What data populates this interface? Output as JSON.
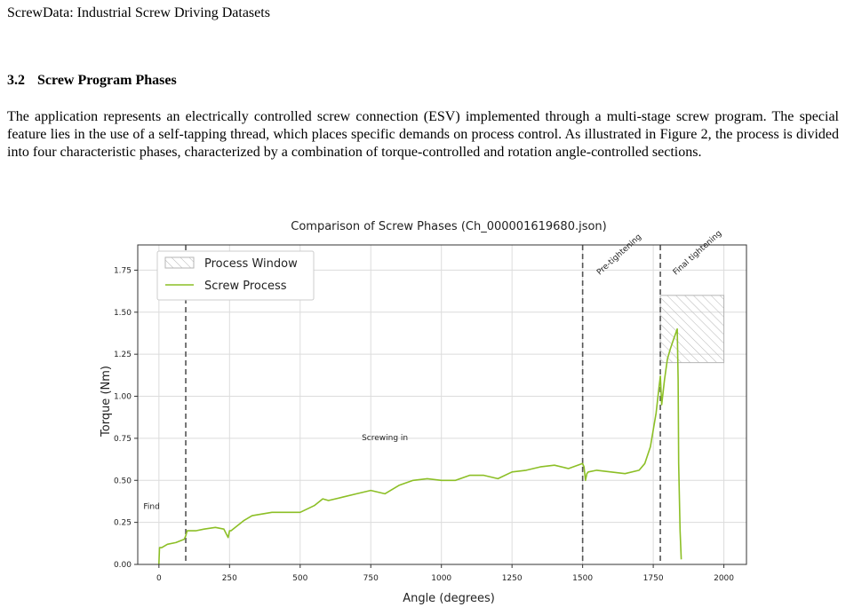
{
  "running_head": "ScrewData: Industrial Screw Driving Datasets",
  "section": {
    "number": "3.2",
    "title": "Screw Program Phases"
  },
  "paragraph": "The application represents an electrically controlled screw connection (ESV) implemented through a multi-stage screw program. The special feature lies in the use of a self-tapping thread, which places specific demands on process control. As illustrated in Figure 2, the process is divided into four characteristic phases, characterized by a combination of torque-controlled and rotation angle-controlled sections.",
  "chart_data": {
    "type": "line",
    "title": "Comparison of Screw Phases (Ch_000001619680.json)",
    "xlabel": "Angle (degrees)",
    "ylabel": "Torque (Nm)",
    "xlim": [
      -75,
      2080
    ],
    "ylim": [
      0,
      1.9
    ],
    "xticks": [
      0,
      250,
      500,
      750,
      1000,
      1250,
      1500,
      1750,
      2000
    ],
    "yticks": [
      0.0,
      0.25,
      0.5,
      0.75,
      1.0,
      1.25,
      1.5,
      1.75
    ],
    "xtick_labels": [
      "0",
      "250",
      "500",
      "750",
      "1000",
      "1250",
      "1500",
      "1750",
      "2000"
    ],
    "ytick_labels": [
      "0.00",
      "0.25",
      "0.50",
      "0.75",
      "1.00",
      "1.25",
      "1.50",
      "1.75"
    ],
    "grid": true,
    "legend_placement": "top-left",
    "legend": [
      "Process Window",
      "Screw Process"
    ],
    "series_color": "#8cbf26",
    "process_window": {
      "x": [
        1775,
        2000
      ],
      "y": [
        1.2,
        1.6
      ]
    },
    "phase_boundaries": [
      95,
      1500,
      1775
    ],
    "phase_labels": [
      {
        "text": "Find",
        "x": -55,
        "y": 0.33
      },
      {
        "text": "Screwing in",
        "x": 800,
        "y": 0.74
      },
      {
        "text": "Pre-tightening",
        "x": 1560,
        "y": 1.72,
        "rotated": true
      },
      {
        "text": "Final tightening",
        "x": 1830,
        "y": 1.72,
        "rotated": true
      }
    ],
    "series": [
      {
        "name": "Screw Process",
        "x": [
          0,
          2,
          10,
          30,
          60,
          90,
          95,
          100,
          130,
          160,
          200,
          230,
          245,
          250,
          255,
          300,
          330,
          400,
          450,
          500,
          550,
          580,
          600,
          650,
          700,
          750,
          800,
          850,
          900,
          950,
          1000,
          1050,
          1100,
          1150,
          1200,
          1250,
          1300,
          1350,
          1400,
          1450,
          1500,
          1505,
          1510,
          1515,
          1520,
          1550,
          1600,
          1650,
          1700,
          1720,
          1740,
          1760,
          1770,
          1775,
          1780,
          1790,
          1800,
          1810,
          1820,
          1835,
          1838,
          1840,
          1845,
          1849
        ],
        "y": [
          0.0,
          0.1,
          0.1,
          0.12,
          0.13,
          0.15,
          0.17,
          0.2,
          0.2,
          0.21,
          0.22,
          0.21,
          0.16,
          0.2,
          0.2,
          0.26,
          0.29,
          0.31,
          0.31,
          0.31,
          0.35,
          0.39,
          0.38,
          0.4,
          0.42,
          0.44,
          0.42,
          0.47,
          0.5,
          0.51,
          0.5,
          0.5,
          0.53,
          0.53,
          0.51,
          0.55,
          0.56,
          0.58,
          0.59,
          0.57,
          0.6,
          0.58,
          0.5,
          0.54,
          0.55,
          0.56,
          0.55,
          0.54,
          0.56,
          0.6,
          0.7,
          0.9,
          1.05,
          1.12,
          0.95,
          1.1,
          1.22,
          1.28,
          1.33,
          1.4,
          1.1,
          0.6,
          0.2,
          0.03
        ]
      }
    ]
  }
}
